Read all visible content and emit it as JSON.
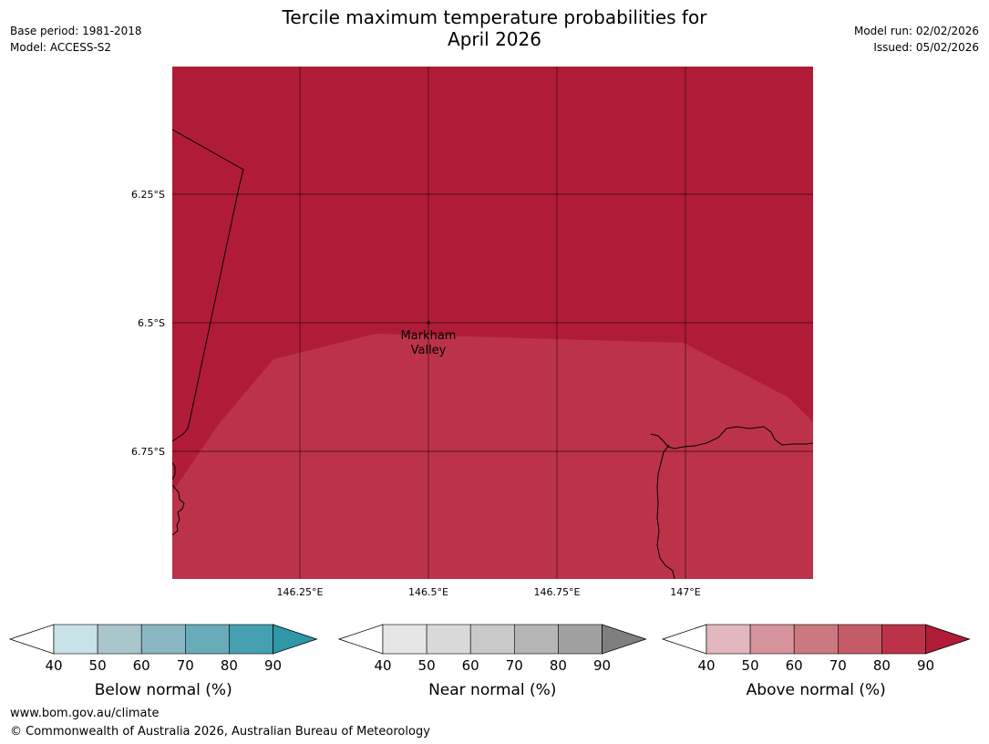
{
  "header": {
    "title_line1": "Tercile maximum temperature probabilities for",
    "title_line2": "April 2026",
    "base_period": "Base period: 1981-2018",
    "model": "Model: ACCESS-S2",
    "model_run": "Model run: 02/02/2026",
    "issued": "Issued: 05/02/2026"
  },
  "map": {
    "lat_labels": [
      "6.25°S",
      "6.5°S",
      "6.75°S"
    ],
    "lon_labels": [
      "146.25°E",
      "146.5°E",
      "146.75°E",
      "147°E"
    ],
    "place": {
      "line1": "Markham",
      "line2": "Valley"
    },
    "region_colors": {
      "above_80_90": "#b01c38",
      "above_70_80": "#bc3349"
    }
  },
  "legends": [
    {
      "label": "Below normal (%)",
      "ticks": [
        "40",
        "50",
        "60",
        "70",
        "80",
        "90"
      ],
      "colors": [
        "#c9e2e7",
        "#a8c6cb",
        "#8ab6c3",
        "#6aabb9",
        "#45a0b0"
      ],
      "arrow_color": "#2e97a8"
    },
    {
      "label": "Near normal (%)",
      "ticks": [
        "40",
        "50",
        "60",
        "70",
        "80",
        "90"
      ],
      "colors": [
        "#e6e6e6",
        "#d9d9d9",
        "#c9c9c9",
        "#b5b5b5",
        "#a0a0a0"
      ],
      "arrow_color": "#7f7f7f"
    },
    {
      "label": "Above normal (%)",
      "ticks": [
        "40",
        "50",
        "60",
        "70",
        "80",
        "90"
      ],
      "colors": [
        "#e2b7bd",
        "#d6939b",
        "#cc7880",
        "#c55a67",
        "#bc3349"
      ],
      "arrow_color": "#b01c38"
    }
  ],
  "footer": {
    "website": "www.bom.gov.au/climate",
    "copyright": "© Commonwealth of Australia 2026, Australian Bureau of Meteorology"
  }
}
